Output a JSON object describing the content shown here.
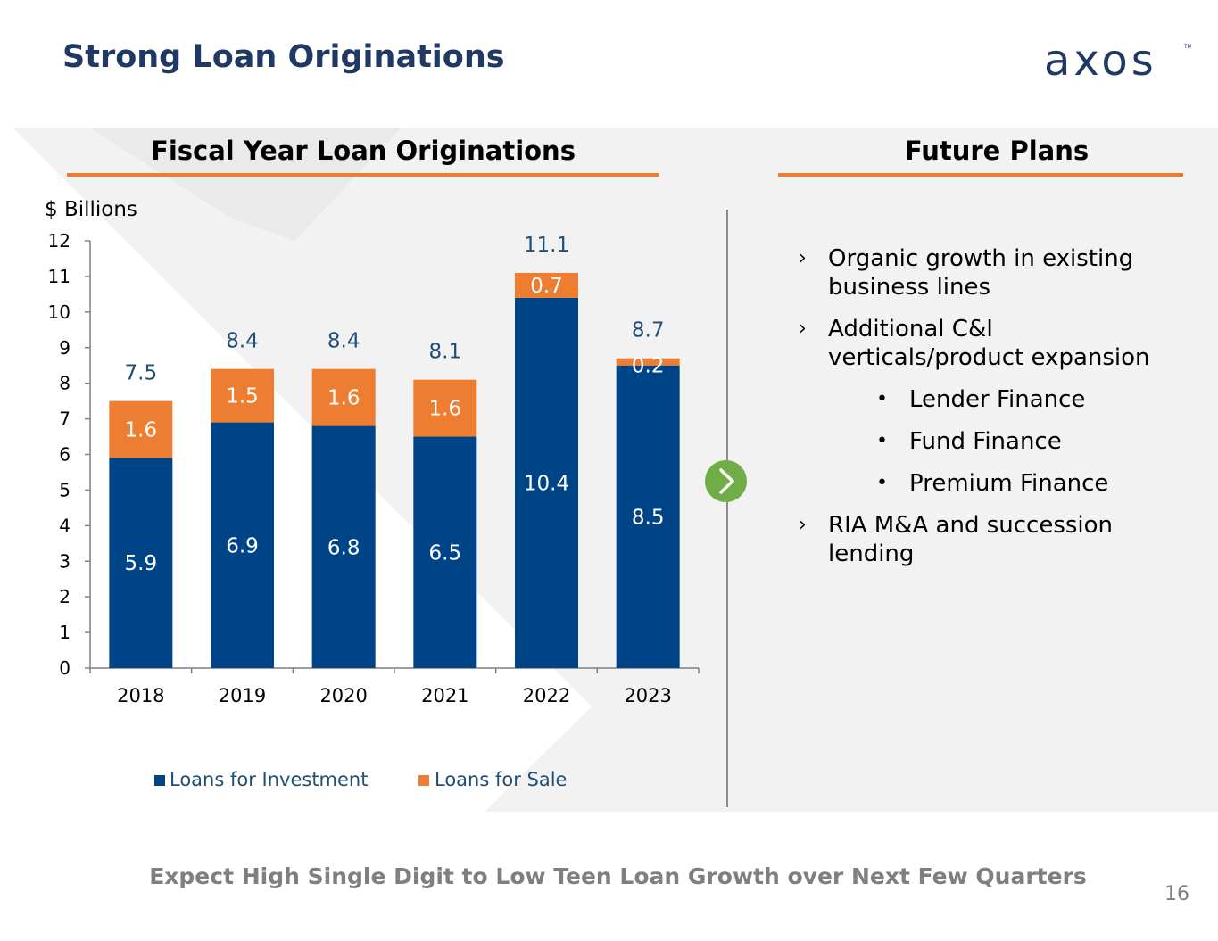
{
  "slide": {
    "title": "Strong Loan Originations",
    "logo_text": "axos",
    "page_number": "16",
    "tagline": "Expect High Single Digit to Low Teen Loan Growth over Next Few Quarters"
  },
  "colors": {
    "title": "#1f3864",
    "accent_orange": "#ed7d31",
    "bar_blue": "#004488",
    "total_label": "#1f4e79",
    "arrow_green": "#70ad47",
    "panel_bg": "#f2f2f2"
  },
  "left_section": {
    "title": "Fiscal Year Loan Originations"
  },
  "right_section": {
    "title": "Future Plans",
    "items": [
      {
        "marker": "›",
        "text": "Organic growth in existing business lines"
      },
      {
        "marker": "›",
        "text": "Additional C&I verticals/product expansion"
      },
      {
        "marker": "•",
        "text": "Lender Finance",
        "sub": true
      },
      {
        "marker": "•",
        "text": "Fund Finance",
        "sub": true
      },
      {
        "marker": "•",
        "text": "Premium Finance",
        "sub": true
      },
      {
        "marker": "›",
        "text": "RIA M&A and succession lending"
      }
    ]
  },
  "chart_data": {
    "type": "bar",
    "stacked": true,
    "title": "Fiscal Year Loan Originations",
    "ylabel": "$ Billions",
    "xlabel": "",
    "ylim": [
      0,
      12
    ],
    "yticks": [
      0,
      1,
      2,
      3,
      4,
      5,
      6,
      7,
      8,
      9,
      10,
      11,
      12
    ],
    "categories": [
      "2018",
      "2019",
      "2020",
      "2021",
      "2022",
      "2023"
    ],
    "series": [
      {
        "name": "Loans for Investment",
        "values": [
          5.9,
          6.9,
          6.8,
          6.5,
          10.4,
          8.5
        ],
        "color": "#004488"
      },
      {
        "name": "Loans for Sale",
        "values": [
          1.6,
          1.5,
          1.6,
          1.6,
          0.7,
          0.2
        ],
        "color": "#ed7d31"
      }
    ],
    "totals": [
      7.5,
      8.4,
      8.4,
      8.1,
      11.1,
      8.7
    ],
    "legend": "bottom"
  }
}
